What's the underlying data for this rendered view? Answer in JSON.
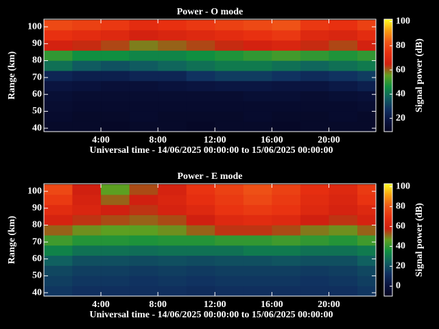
{
  "chart_data": [
    {
      "type": "heatmap",
      "title": "Power - O mode",
      "x_label": "Universal time - 14/06/2025 00:00:00 to 15/06/2025 00:00:00",
      "y_label": "Range (km)",
      "colorbar_label": "Signal power (dB)",
      "x_bins": [
        0,
        2,
        4,
        6,
        8,
        10,
        12,
        14,
        16,
        18,
        20,
        22,
        24
      ],
      "y_bins": [
        38,
        44,
        50,
        56,
        62,
        68,
        74,
        80,
        86,
        92,
        98,
        104
      ],
      "values": [
        [
          12,
          12,
          11,
          12,
          12,
          11,
          12,
          12,
          11,
          12,
          12,
          12
        ],
        [
          13,
          12,
          12,
          13,
          12,
          12,
          12,
          13,
          12,
          12,
          13,
          12
        ],
        [
          14,
          13,
          13,
          13,
          13,
          13,
          13,
          13,
          13,
          13,
          13,
          14
        ],
        [
          15,
          14,
          14,
          14,
          14,
          14,
          14,
          15,
          15,
          14,
          15,
          16
        ],
        [
          18,
          17,
          16,
          16,
          17,
          18,
          19,
          19,
          18,
          18,
          20,
          22
        ],
        [
          24,
          22,
          22,
          24,
          24,
          28,
          30,
          30,
          28,
          26,
          28,
          30
        ],
        [
          40,
          36,
          34,
          36,
          38,
          40,
          42,
          42,
          40,
          38,
          40,
          42
        ],
        [
          50,
          46,
          46,
          44,
          44,
          46,
          48,
          50,
          52,
          50,
          48,
          50
        ],
        [
          66,
          64,
          62,
          58,
          60,
          62,
          64,
          66,
          68,
          64,
          62,
          66
        ],
        [
          74,
          72,
          70,
          66,
          68,
          70,
          72,
          74,
          76,
          70,
          68,
          72
        ],
        [
          80,
          78,
          76,
          72,
          74,
          76,
          78,
          80,
          82,
          76,
          74,
          78
        ]
      ],
      "xlim": [
        0,
        23.3
      ],
      "ylim": [
        38,
        104.5
      ],
      "xticks": [
        {
          "value": 4,
          "label": "4:00"
        },
        {
          "value": 8,
          "label": "8:00"
        },
        {
          "value": 12,
          "label": "12:00"
        },
        {
          "value": 16,
          "label": "16:00"
        },
        {
          "value": 20,
          "label": "20:00"
        }
      ],
      "yticks": [
        40,
        50,
        60,
        70,
        80,
        90,
        100
      ],
      "zlim": [
        9,
        102
      ],
      "zticks": [
        20,
        40,
        60,
        80,
        100
      ],
      "colorscale": [
        "#050520",
        "#0a1440",
        "#103060",
        "#106060",
        "#109040",
        "#60a020",
        "#d02010",
        "#e83010",
        "#f05818",
        "#f8a010",
        "#ffff20"
      ]
    },
    {
      "type": "heatmap",
      "title": "Power - E mode",
      "x_label": "Universal time - 14/06/2025 00:00:00 to 15/06/2025 00:00:00",
      "y_label": "Range (km)",
      "colorbar_label": "Signal power (dB)",
      "x_bins": [
        0,
        2,
        4,
        6,
        8,
        10,
        12,
        14,
        16,
        18,
        20,
        22,
        24
      ],
      "y_bins": [
        38,
        44,
        50,
        56,
        62,
        68,
        74,
        80,
        86,
        92,
        98,
        104
      ],
      "values": [
        [
          14,
          12,
          12,
          12,
          12,
          11,
          12,
          12,
          12,
          12,
          12,
          14
        ],
        [
          16,
          14,
          14,
          13,
          14,
          13,
          14,
          14,
          14,
          13,
          14,
          16
        ],
        [
          18,
          16,
          16,
          15,
          16,
          15,
          16,
          16,
          16,
          15,
          16,
          18
        ],
        [
          24,
          20,
          20,
          19,
          20,
          19,
          20,
          20,
          21,
          20,
          20,
          24
        ],
        [
          32,
          28,
          28,
          27,
          28,
          28,
          28,
          30,
          30,
          28,
          28,
          30
        ],
        [
          42,
          38,
          38,
          37,
          38,
          38,
          40,
          40,
          42,
          40,
          38,
          42
        ],
        [
          52,
          48,
          46,
          46,
          48,
          52,
          56,
          56,
          54,
          50,
          48,
          52
        ],
        [
          60,
          56,
          54,
          52,
          54,
          58,
          64,
          66,
          64,
          58,
          56,
          60
        ],
        [
          66,
          62,
          58,
          56,
          60,
          64,
          70,
          72,
          70,
          64,
          60,
          64
        ],
        [
          72,
          60,
          52,
          58,
          62,
          68,
          72,
          76,
          72,
          66,
          62,
          70
        ],
        [
          76,
          58,
          46,
          54,
          60,
          70,
          74,
          78,
          74,
          68,
          64,
          72
        ]
      ],
      "xlim": [
        0,
        23.3
      ],
      "ylim": [
        38,
        104.5
      ],
      "xticks": [
        {
          "value": 4,
          "label": "4:00"
        },
        {
          "value": 8,
          "label": "8:00"
        },
        {
          "value": 12,
          "label": "12:00"
        },
        {
          "value": 16,
          "label": "16:00"
        },
        {
          "value": 20,
          "label": "20:00"
        }
      ],
      "yticks": [
        40,
        50,
        60,
        70,
        80,
        90,
        100
      ],
      "zlim": [
        -10,
        103
      ],
      "zticks": [
        0,
        20,
        40,
        60,
        80,
        100
      ],
      "colorscale": [
        "#050520",
        "#0a1440",
        "#103060",
        "#106060",
        "#109040",
        "#60a020",
        "#d02010",
        "#e83010",
        "#f05818",
        "#f8a010",
        "#ffff20"
      ]
    }
  ]
}
